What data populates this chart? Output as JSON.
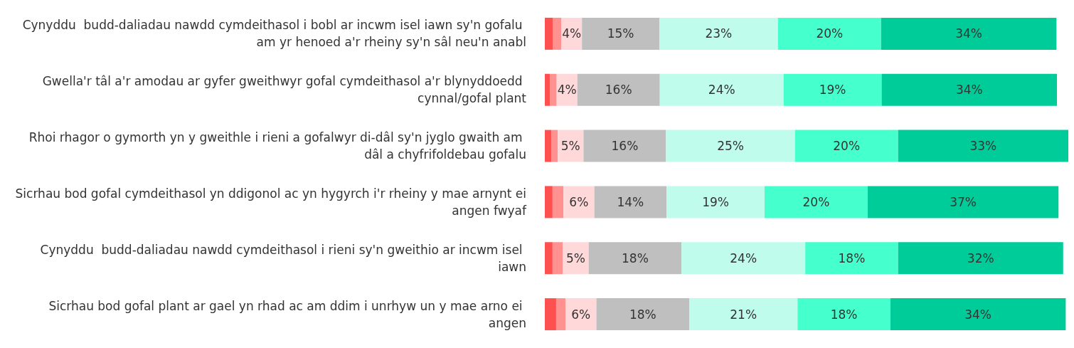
{
  "chart_data": {
    "type": "bar",
    "orientation": "horizontal",
    "stacked": true,
    "tick_labels": "y",
    "categories": [
      "Cynyddu  budd-daliadau nawdd cymdeithasol i bobl ar incwm isel iawn sy'n gofalu am yr henoed a'r rheiny sy'n sâl neu'n anabl",
      "Gwella'r tâl a'r amodau ar gyfer gweithwyr gofal cymdeithasol a'r blynyddoedd cynnal/gofal plant",
      "Rhoi rhagor o gymorth yn y gweithle i rieni a gofalwyr di-dâl sy'n jyglo gwaith am dâl a chyfrifoldebau gofalu",
      "Sicrhau bod gofal cymdeithasol yn ddigonol ac yn hygyrch i'r rheiny y mae arnynt ei angen fwyaf",
      "Cynyddu  budd-daliadau nawdd cymdeithasol i rieni sy'n gweithio ar incwm isel iawn",
      "Sicrhau bod gofal plant ar gael yn rhad ac am ddim i unrhyw un y mae arno ei angen"
    ],
    "series": [
      {
        "color": "#ff5050",
        "values": [
          1.6,
          1.0,
          1.3,
          1.5,
          1.5,
          2.2
        ],
        "value_labels": [
          null,
          null,
          null,
          null,
          null,
          null
        ]
      },
      {
        "color": "#ff9191",
        "values": [
          1.6,
          1.3,
          1.2,
          2.1,
          2.0,
          1.8
        ],
        "value_labels": [
          null,
          null,
          null,
          null,
          null,
          null
        ]
      },
      {
        "color": "#ffd9d9",
        "values": [
          4,
          4,
          5,
          6,
          5,
          6
        ],
        "value_labels": [
          "4%",
          "4%",
          "5%",
          "6%",
          "5%",
          "6%"
        ]
      },
      {
        "color": "#bfbfbf",
        "values": [
          15,
          16,
          16,
          14,
          18,
          18
        ],
        "value_labels": [
          "15%",
          "16%",
          "16%",
          "14%",
          "18%",
          "18%"
        ]
      },
      {
        "color": "#c0fcec",
        "values": [
          23,
          24,
          25,
          19,
          24,
          21
        ],
        "value_labels": [
          "23%",
          "24%",
          "25%",
          "19%",
          "24%",
          "21%"
        ]
      },
      {
        "color": "#45ffcc",
        "values": [
          20,
          19,
          20,
          20,
          18,
          18
        ],
        "value_labels": [
          "20%",
          "19%",
          "20%",
          "20%",
          "18%",
          "18%"
        ]
      },
      {
        "color": "#00cc99",
        "values": [
          34,
          34,
          33,
          37,
          32,
          34
        ],
        "value_labels": [
          "34%",
          "34%",
          "33%",
          "37%",
          "32%",
          "34%"
        ]
      }
    ]
  }
}
